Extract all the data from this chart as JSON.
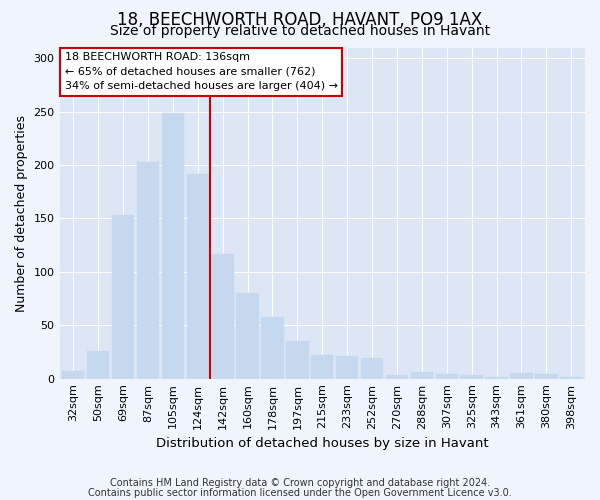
{
  "title1": "18, BEECHWORTH ROAD, HAVANT, PO9 1AX",
  "title2": "Size of property relative to detached houses in Havant",
  "xlabel": "Distribution of detached houses by size in Havant",
  "ylabel": "Number of detached properties",
  "categories": [
    "32sqm",
    "50sqm",
    "69sqm",
    "87sqm",
    "105sqm",
    "124sqm",
    "142sqm",
    "160sqm",
    "178sqm",
    "197sqm",
    "215sqm",
    "233sqm",
    "252sqm",
    "270sqm",
    "288sqm",
    "307sqm",
    "325sqm",
    "343sqm",
    "361sqm",
    "380sqm",
    "398sqm"
  ],
  "values": [
    7,
    26,
    153,
    203,
    249,
    192,
    117,
    80,
    58,
    35,
    22,
    21,
    19,
    3,
    6,
    4,
    3,
    2,
    5,
    4,
    2
  ],
  "bar_color": "#c5d8ee",
  "bar_edgecolor": "#c5d8ee",
  "vline_color": "#cc0000",
  "vline_x": 5.5,
  "annotation_text": "18 BEECHWORTH ROAD: 136sqm\n← 65% of detached houses are smaller (762)\n34% of semi-detached houses are larger (404) →",
  "annotation_box_edgecolor": "#cc0000",
  "annotation_box_facecolor": "#ffffff",
  "ylim": [
    0,
    310
  ],
  "yticks": [
    0,
    50,
    100,
    150,
    200,
    250,
    300
  ],
  "footnote1": "Contains HM Land Registry data © Crown copyright and database right 2024.",
  "footnote2": "Contains public sector information licensed under the Open Government Licence v3.0.",
  "fig_facecolor": "#f0f4fc",
  "ax_facecolor": "#dce6f5",
  "title1_fontsize": 12,
  "title2_fontsize": 10,
  "xlabel_fontsize": 9.5,
  "ylabel_fontsize": 9,
  "tick_fontsize": 8,
  "annot_fontsize": 8,
  "footnote_fontsize": 7
}
